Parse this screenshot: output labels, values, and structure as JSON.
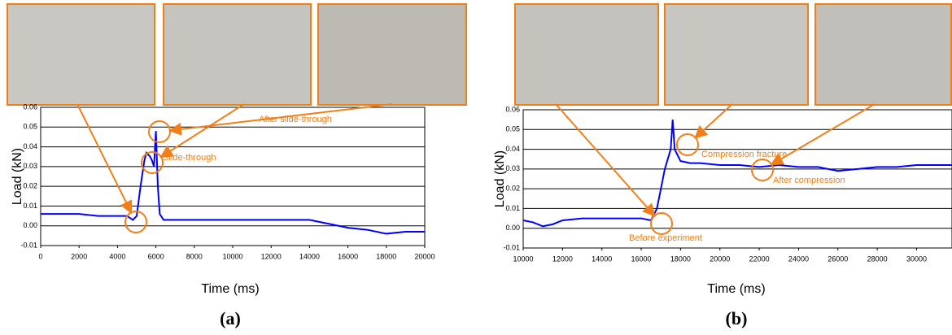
{
  "chart_data": [
    {
      "type": "line",
      "panel": "(a)",
      "xlabel": "Time (ms)",
      "ylabel": "Load (kN)",
      "x": [
        0,
        1000,
        2000,
        3000,
        4000,
        4500,
        4800,
        5000,
        5200,
        5400,
        5500,
        5700,
        5800,
        5900,
        6000,
        6100,
        6200,
        6400,
        8000,
        10000,
        12000,
        14000,
        15000,
        16000,
        17000,
        18000,
        19000,
        20000
      ],
      "values": [
        0.006,
        0.006,
        0.006,
        0.005,
        0.005,
        0.005,
        0.003,
        0.005,
        0.02,
        0.033,
        0.037,
        0.035,
        0.033,
        0.03,
        0.048,
        0.02,
        0.006,
        0.003,
        0.003,
        0.003,
        0.003,
        0.003,
        0.001,
        -0.001,
        -0.002,
        -0.004,
        -0.003,
        -0.003
      ],
      "color": "#0000ff",
      "xlim": [
        0,
        20000
      ],
      "xticks": [
        0,
        2000,
        4000,
        6000,
        8000,
        10000,
        12000,
        14000,
        16000,
        18000,
        20000
      ],
      "ylim": [
        -0.01,
        0.06
      ],
      "yticks": [
        -0.01,
        {
          "value": 0,
          "label": "0.00"
        },
        0.01,
        0.02,
        0.03,
        0.04,
        0.05,
        0.06
      ],
      "grid": true,
      "annotation_color": "#f07f1a",
      "annotations": [
        "After slide-through",
        "Slide-through"
      ]
    },
    {
      "type": "line",
      "panel": "(b)",
      "xlabel": "Time (ms)",
      "ylabel": "Load (kN)",
      "x": [
        10000,
        10500,
        11000,
        11500,
        12000,
        13000,
        14000,
        15000,
        16000,
        16500,
        16800,
        17000,
        17200,
        17500,
        17600,
        17700,
        18000,
        18500,
        19000,
        20000,
        21000,
        22000,
        23000,
        24000,
        25000,
        26000,
        27000,
        28000,
        29000,
        30000,
        31000,
        31800
      ],
      "values": [
        0.004,
        0.003,
        0.001,
        0.002,
        0.004,
        0.005,
        0.005,
        0.005,
        0.005,
        0.004,
        0.01,
        0.02,
        0.03,
        0.04,
        0.055,
        0.04,
        0.034,
        0.033,
        0.033,
        0.032,
        0.032,
        0.031,
        0.032,
        0.031,
        0.031,
        0.029,
        0.03,
        0.031,
        0.031,
        0.032,
        0.032,
        0.032
      ],
      "color": "#0000ff",
      "xlim": [
        10000,
        31800
      ],
      "xticks": [
        10000,
        12000,
        14000,
        16000,
        18000,
        20000,
        22000,
        24000,
        26000,
        28000,
        30000
      ],
      "ylim": [
        -0.01,
        0.06
      ],
      "yticks": [
        -0.01,
        {
          "value": 0,
          "label": "0.00"
        },
        0.01,
        0.02,
        0.03,
        0.04,
        0.05,
        0.06
      ],
      "grid": true,
      "annotation_color": "#f07f1a",
      "annotations": [
        "Compression fracture",
        "After compression",
        "Before experiment"
      ]
    }
  ]
}
